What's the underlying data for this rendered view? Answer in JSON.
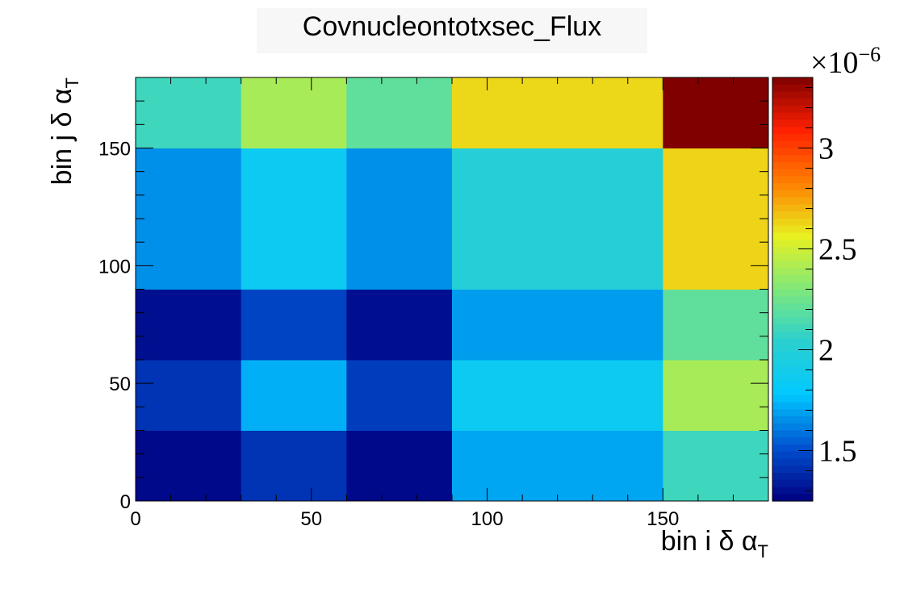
{
  "chart_data": {
    "type": "heatmap",
    "title": "Covnucleontotxsec_Flux",
    "xlabel": "bin i δ α",
    "xlabel_sub": "T",
    "ylabel": "bin j δ α",
    "ylabel_sub": "T",
    "x_edges": [
      0,
      30,
      60,
      90,
      120,
      150,
      180
    ],
    "y_edges": [
      0,
      30,
      60,
      90,
      120,
      150,
      180
    ],
    "xlim": [
      0,
      180
    ],
    "ylim": [
      0,
      180
    ],
    "x_ticks": [
      0,
      50,
      100,
      150
    ],
    "y_ticks": [
      0,
      50,
      100,
      150
    ],
    "z_range": [
      1.25e-06,
      3.35e-06
    ],
    "z_ticks": [
      {
        "value": 1.5e-06,
        "label": "1.5"
      },
      {
        "value": 2e-06,
        "label": "2"
      },
      {
        "value": 2.5e-06,
        "label": "2.5"
      },
      {
        "value": 3e-06,
        "label": "3"
      }
    ],
    "z_exponent_label": "×10",
    "z_exponent_power": "−6",
    "colormap": [
      "#000080",
      "#0050d0",
      "#00c8ff",
      "#2ad0d0",
      "#80e87a",
      "#e8f020",
      "#ff8000",
      "#ff2000",
      "#800000"
    ],
    "values": [
      [
        1.28e-06,
        1.42e-06,
        1.28e-06,
        1.7e-06,
        1.7e-06,
        2.1e-06
      ],
      [
        1.42e-06,
        1.72e-06,
        1.45e-06,
        1.85e-06,
        1.85e-06,
        2.4e-06
      ],
      [
        1.3e-06,
        1.47e-06,
        1.3e-06,
        1.68e-06,
        1.68e-06,
        2.2e-06
      ],
      [
        1.65e-06,
        1.85e-06,
        1.65e-06,
        2e-06,
        2e-06,
        2.63e-06
      ],
      [
        1.65e-06,
        1.85e-06,
        1.65e-06,
        2e-06,
        2e-06,
        2.63e-06
      ],
      [
        2.1e-06,
        2.4e-06,
        2.2e-06,
        2.62e-06,
        2.62e-06,
        3.35e-06
      ]
    ]
  }
}
